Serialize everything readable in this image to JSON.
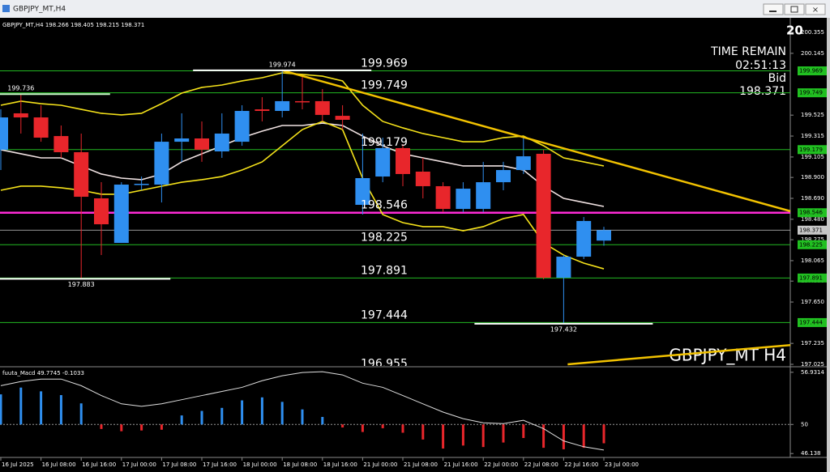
{
  "window_title": "GBPJPY_MT,H4",
  "chart_data": [
    {
      "type": "candlestick",
      "header": "GBPJPY_MT,H4  198.266 198.405 198.215 198.371",
      "corner_text": "20",
      "watermark": "GBPJPY_MT H4",
      "info": {
        "time_label": "TIME REMAIN",
        "time": "02:51:13",
        "bid_label": "Bid",
        "bid": 198.371,
        "bid_color": "#c8c8c8"
      },
      "categories": [
        "16 Jul 2025",
        null,
        "16 Jul 08:00",
        null,
        "16 Jul 16:00",
        null,
        "17 Jul 00:00",
        null,
        "17 Jul 08:00",
        null,
        "17 Jul 16:00",
        null,
        "18 Jul 00:00",
        null,
        "18 Jul 08:00",
        null,
        "18 Jul 16:00",
        null,
        "21 Jul 00:00",
        null,
        "21 Jul 08:00",
        null,
        "21 Jul 16:00",
        null,
        "22 Jul 00:00",
        null,
        "22 Jul 08:00",
        null,
        "22 Jul 16:00",
        null,
        "23 Jul 00:00"
      ],
      "ohlc": [
        [
          199.178,
          199.583,
          198.974,
          199.502
        ],
        [
          199.543,
          199.736,
          199.34,
          199.502
        ],
        [
          199.502,
          199.624,
          199.258,
          199.299
        ],
        [
          199.315,
          199.421,
          199.096,
          199.153
        ],
        [
          199.153,
          199.34,
          197.883,
          198.706
        ],
        [
          198.69,
          198.852,
          198.121,
          198.43
        ],
        [
          198.243,
          198.852,
          198.243,
          198.828
        ],
        [
          198.828,
          198.909,
          198.771,
          198.836
        ],
        [
          198.828,
          199.34,
          198.649,
          199.258
        ],
        [
          199.258,
          199.543,
          199.056,
          199.291
        ],
        [
          199.291,
          199.462,
          199.056,
          199.178
        ],
        [
          199.161,
          199.543,
          199.096,
          199.34
        ],
        [
          199.258,
          199.624,
          199.218,
          199.567
        ],
        [
          199.583,
          199.705,
          199.462,
          199.567
        ],
        [
          199.567,
          199.974,
          199.502,
          199.665
        ],
        [
          199.665,
          199.908,
          199.583,
          199.66
        ],
        [
          199.665,
          199.786,
          199.462,
          199.527
        ],
        [
          199.518,
          199.624,
          199.38,
          199.478
        ],
        [
          198.625,
          199.34,
          198.528,
          198.893
        ],
        [
          198.909,
          199.299,
          198.852,
          199.194
        ],
        [
          199.194,
          199.234,
          198.812,
          198.934
        ],
        [
          198.958,
          199.096,
          198.69,
          198.812
        ],
        [
          198.812,
          198.852,
          198.552,
          198.584
        ],
        [
          198.584,
          198.852,
          198.552,
          198.787
        ],
        [
          198.584,
          199.056,
          198.552,
          198.852
        ],
        [
          198.852,
          199.056,
          198.771,
          198.974
        ],
        [
          198.974,
          199.299,
          198.934,
          199.112
        ],
        [
          199.137,
          199.178,
          197.878,
          197.894
        ],
        [
          197.894,
          198.121,
          197.432,
          198.105
        ],
        [
          198.105,
          198.503,
          198.081,
          198.463
        ],
        [
          198.266,
          198.405,
          198.215,
          198.371
        ]
      ],
      "up_color": "#2f8ff0",
      "down_color": "#e8262b",
      "overlays": [
        {
          "color": "#f0e2e2",
          "values": [
            199.178,
            199.137,
            199.096,
            199.096,
            199.015,
            198.934,
            198.893,
            198.877,
            198.934,
            199.056,
            199.137,
            199.218,
            199.299,
            199.364,
            199.421,
            199.421,
            199.445,
            199.421,
            199.315,
            199.218,
            199.137,
            199.096,
            199.056,
            199.015,
            199.015,
            199.015,
            198.974,
            198.812,
            198.69,
            198.649,
            198.609
          ]
        },
        {
          "color": "#f5e21a",
          "values": [
            199.624,
            199.665,
            199.64,
            199.624,
            199.583,
            199.543,
            199.527,
            199.543,
            199.64,
            199.746,
            199.803,
            199.827,
            199.868,
            199.9,
            199.949,
            199.933,
            199.916,
            199.868,
            199.624,
            199.462,
            199.397,
            199.34,
            199.299,
            199.258,
            199.258,
            199.299,
            199.315,
            199.218,
            199.096,
            199.056,
            199.015
          ]
        },
        {
          "color": "#f5e21a",
          "values": [
            198.771,
            198.812,
            198.812,
            198.796,
            198.771,
            198.731,
            198.731,
            198.771,
            198.812,
            198.852,
            198.877,
            198.909,
            198.974,
            199.056,
            199.218,
            199.38,
            199.462,
            199.38,
            198.893,
            198.528,
            198.446,
            198.406,
            198.406,
            198.365,
            198.406,
            198.487,
            198.528,
            198.243,
            198.121,
            198.04,
            197.983
          ]
        }
      ],
      "trendlines": [
        {
          "color": "#f2c200",
          "from": [
            14,
            199.974
          ],
          "to": [
            39.3,
            198.56
          ]
        },
        {
          "color": "#f2c200",
          "from": [
            28.2,
            197.025
          ],
          "to": [
            41.1,
            197.25
          ]
        }
      ],
      "levels": [
        {
          "value": 199.969,
          "color": "#22b822"
        },
        {
          "value": 199.749,
          "color": "#22b822"
        },
        {
          "value": 199.179,
          "color": "#22b822"
        },
        {
          "value": 198.546,
          "color": "#ff2bd6"
        },
        {
          "value": 198.225,
          "color": "#22b822"
        },
        {
          "value": 197.891,
          "color": "#22b822"
        },
        {
          "value": 197.444,
          "color": "#22b822"
        },
        {
          "value": 196.955,
          "color": "#22b822"
        }
      ],
      "level_box_color": "#21c021",
      "price_marks": [
        {
          "value": 199.974,
          "color": "#ffffff"
        },
        {
          "value": 199.736,
          "color": "#c8ffc8"
        },
        {
          "value": 197.883,
          "color": "#ffffff"
        },
        {
          "value": 197.432,
          "color": "#ffffff"
        }
      ],
      "ylim": [
        197.025,
        200.355
      ],
      "yticks": [
        200.355,
        200.145,
        199.525,
        199.315,
        199.105,
        {
          "value": 198.9,
          "label": "198.900"
        },
        {
          "value": 198.69,
          "label": "198.690"
        },
        {
          "value": 198.48,
          "label": "198.480"
        },
        198.275,
        198.065,
        {
          "value": 197.86,
          "label": "197.860"
        },
        {
          "value": 197.65,
          "label": "197.650"
        },
        197.235,
        197.025
      ]
    },
    {
      "type": "macd",
      "title": "fuuta_Macd 49.7745 -0.1033",
      "baseline": 50,
      "values": [
        54.0,
        54.9,
        54.4,
        53.9,
        52.8,
        49.4,
        49.1,
        49.2,
        49.3,
        51.2,
        51.8,
        52.2,
        53.2,
        53.6,
        53.0,
        52.0,
        51.0,
        49.6,
        49.0,
        49.5,
        48.9,
        48.0,
        46.8,
        47.2,
        47.0,
        47.6,
        48.2,
        46.9,
        46.7,
        46.9,
        47.5
      ],
      "up_color": "#2f8ff0",
      "down_color": "#e8262b",
      "signal": {
        "color": "#e0e0e0",
        "values": [
          55.15,
          55.7,
          56.03,
          56.03,
          55.15,
          53.84,
          52.74,
          52.41,
          52.74,
          53.29,
          53.84,
          54.38,
          54.93,
          55.81,
          56.47,
          56.9,
          57.01,
          56.58,
          55.48,
          54.93,
          53.84,
          52.74,
          51.64,
          50.77,
          50.22,
          50.11,
          50.55,
          49.45,
          47.81,
          47.04,
          46.6
        ]
      },
      "ylim": [
        45.62,
        57.45
      ],
      "yticks": [
        56.9314,
        50,
        46.138
      ]
    }
  ]
}
